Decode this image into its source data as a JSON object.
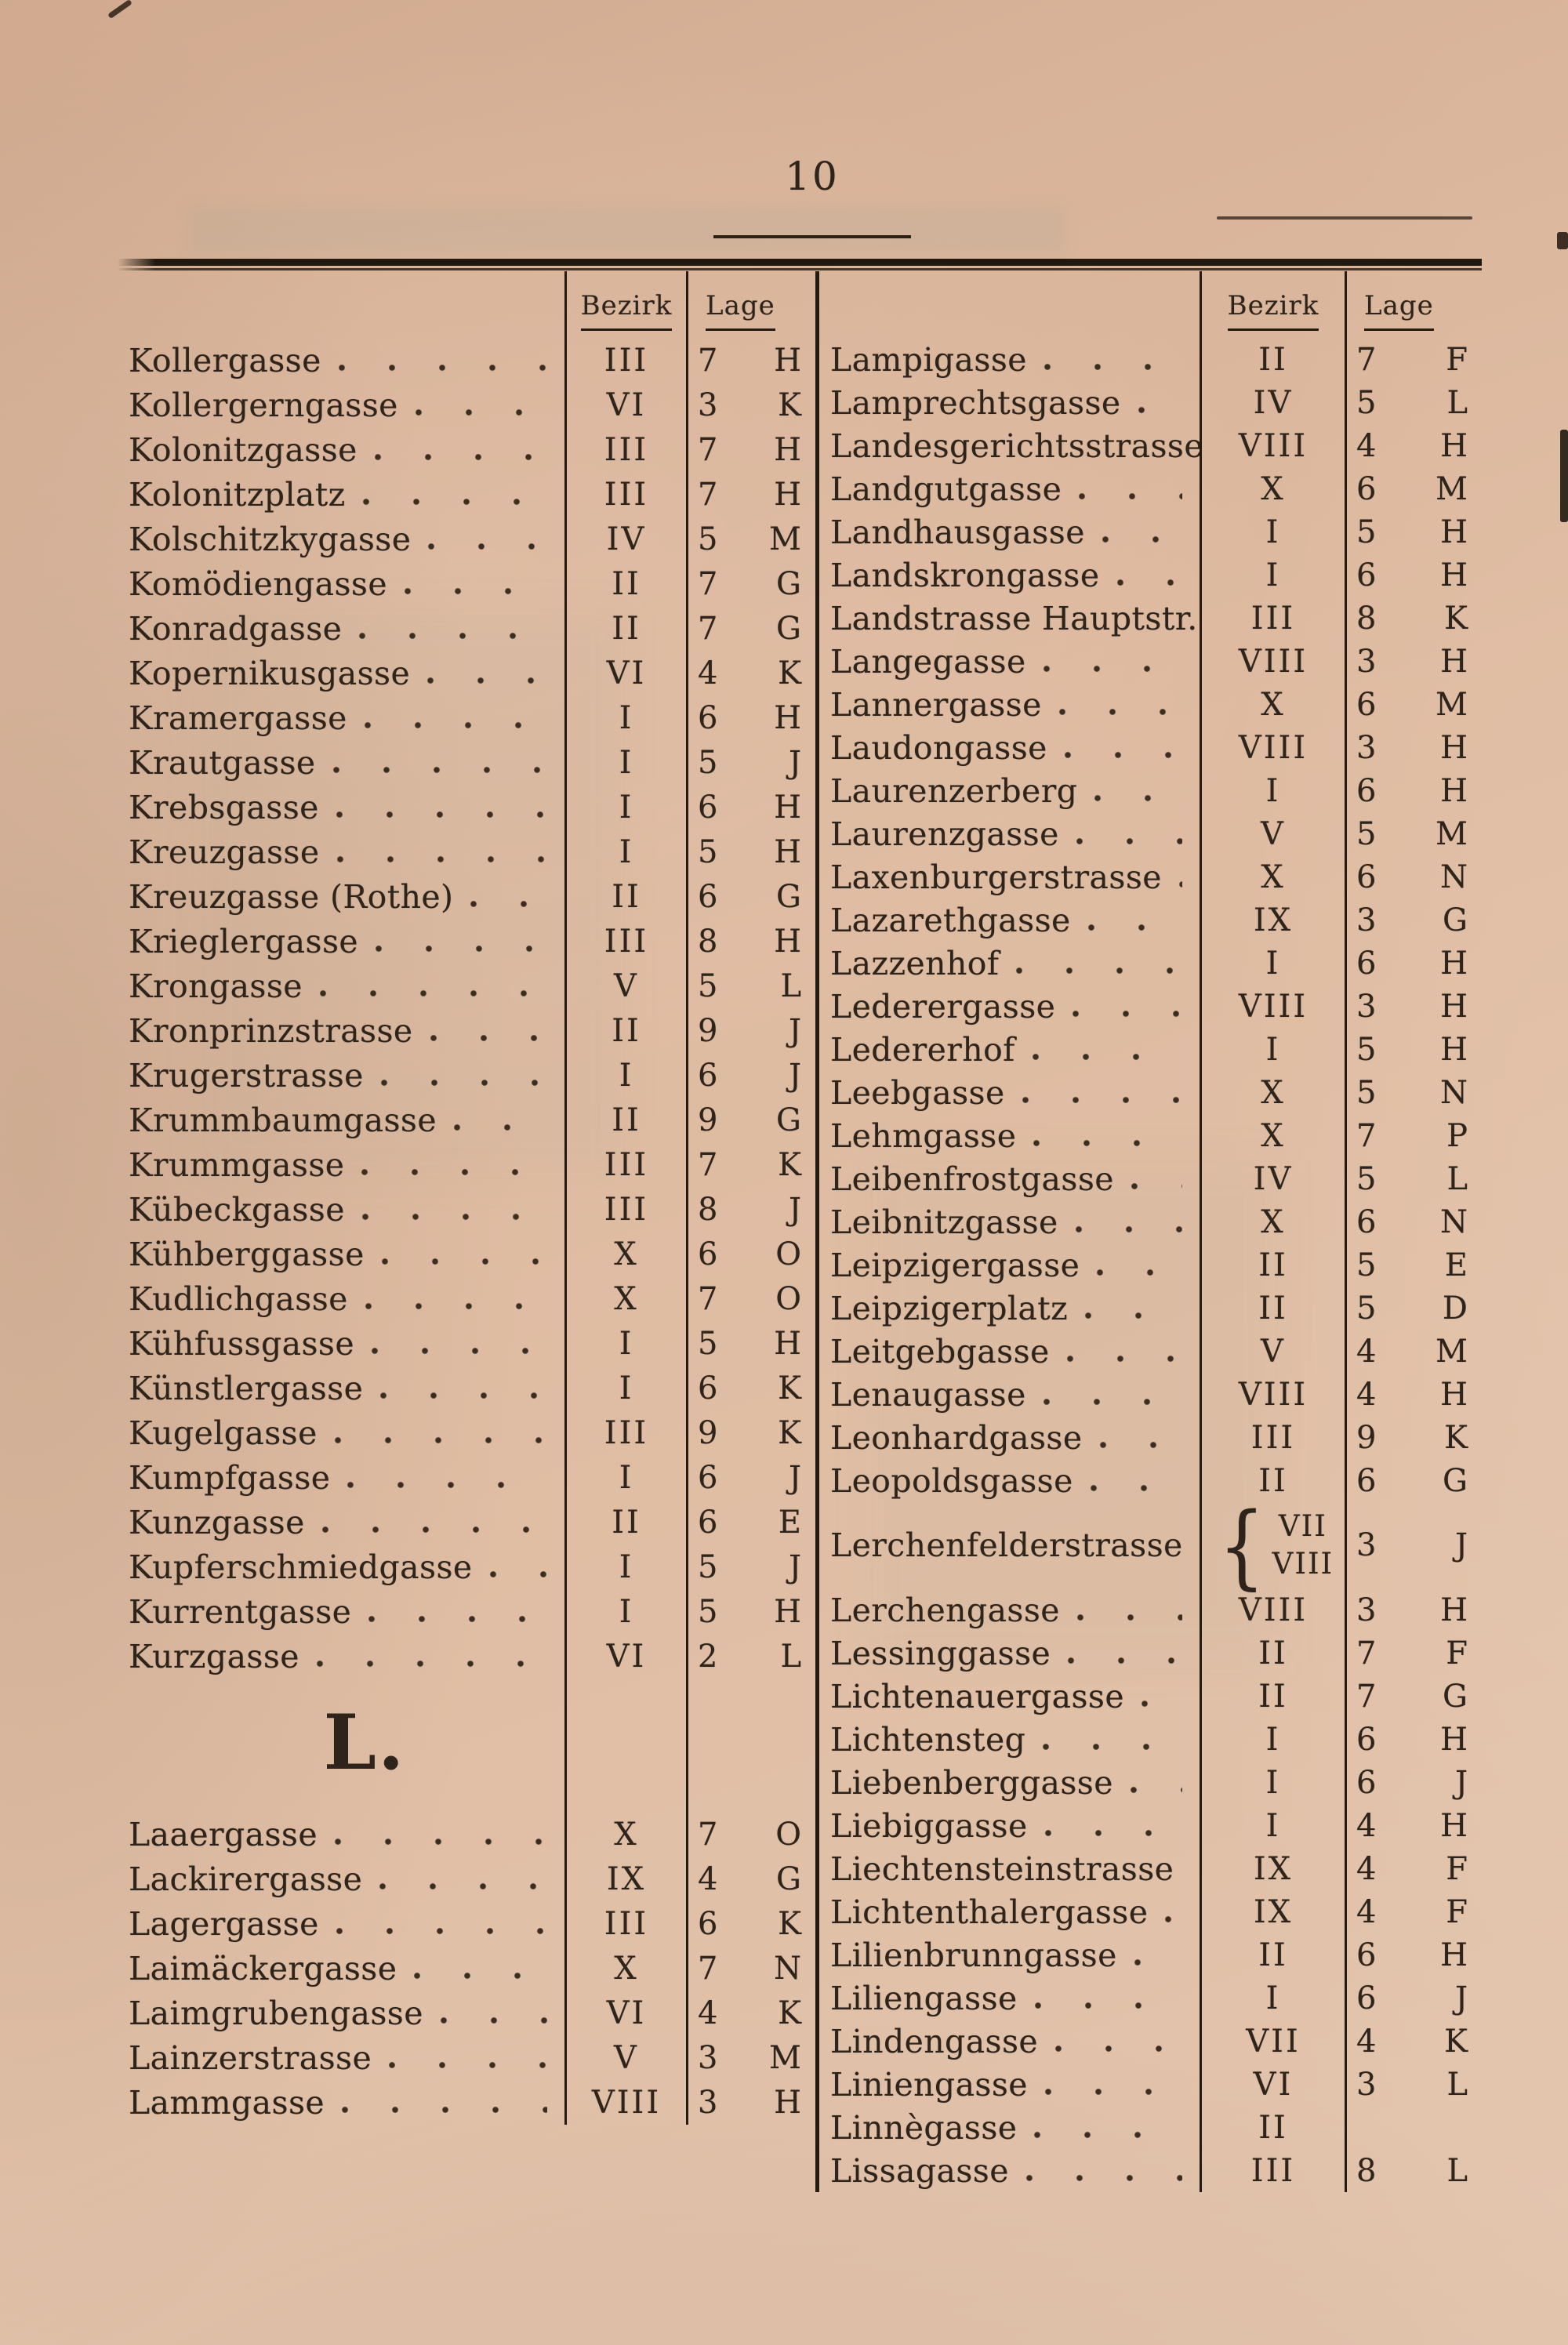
{
  "page": {
    "number": "10"
  },
  "columns": {
    "bezirk": "Bezirk",
    "lage": "Lage"
  },
  "section_header": "L.",
  "colors": {
    "paper": "#ddb99f",
    "ink": "#2e241b"
  },
  "left_table": {
    "rows": [
      {
        "name": "Kollergasse",
        "bezirk": "III",
        "lage": "7 H"
      },
      {
        "name": "Kollergerngasse",
        "bezirk": "VI",
        "lage": "3 K"
      },
      {
        "name": "Kolonitzgasse",
        "bezirk": "III",
        "lage": "7 H"
      },
      {
        "name": "Kolonitzplatz",
        "bezirk": "III",
        "lage": "7 H"
      },
      {
        "name": "Kolschitzkygasse",
        "bezirk": "IV",
        "lage": "5 M"
      },
      {
        "name": "Komödiengasse",
        "bezirk": "II",
        "lage": "7 G"
      },
      {
        "name": "Konradgasse",
        "bezirk": "II",
        "lage": "7 G"
      },
      {
        "name": "Kopernikusgasse",
        "bezirk": "VI",
        "lage": "4 K"
      },
      {
        "name": "Kramergasse",
        "bezirk": "I",
        "lage": "6 H"
      },
      {
        "name": "Krautgasse",
        "bezirk": "I",
        "lage": "5 J"
      },
      {
        "name": "Krebsgasse",
        "bezirk": "I",
        "lage": "6 H"
      },
      {
        "name": "Kreuzgasse",
        "bezirk": "I",
        "lage": "5 H"
      },
      {
        "name": "Kreuzgasse (Rothe)",
        "bezirk": "II",
        "lage": "6 G"
      },
      {
        "name": "Krieglergasse",
        "bezirk": "III",
        "lage": "8 H"
      },
      {
        "name": "Krongasse",
        "bezirk": "V",
        "lage": "5 L"
      },
      {
        "name": "Kronprinzstrasse",
        "bezirk": "II",
        "lage": "9 J"
      },
      {
        "name": "Krugerstrasse",
        "bezirk": "I",
        "lage": "6 J"
      },
      {
        "name": "Krummbaumgasse",
        "bezirk": "II",
        "lage": "9 G"
      },
      {
        "name": "Krummgasse",
        "bezirk": "III",
        "lage": "7 K"
      },
      {
        "name": "Kübeckgasse",
        "bezirk": "III",
        "lage": "8 J"
      },
      {
        "name": "Kühberggasse",
        "bezirk": "X",
        "lage": "6 O"
      },
      {
        "name": "Kudlichgasse",
        "bezirk": "X",
        "lage": "7 O"
      },
      {
        "name": "Kühfussgasse",
        "bezirk": "I",
        "lage": "5 H"
      },
      {
        "name": "Künstlergasse",
        "bezirk": "I",
        "lage": "6 K"
      },
      {
        "name": "Kugelgasse",
        "bezirk": "III",
        "lage": "9 K"
      },
      {
        "name": "Kumpfgasse",
        "bezirk": "I",
        "lage": "6 J"
      },
      {
        "name": "Kunzgasse",
        "bezirk": "II",
        "lage": "6 E"
      },
      {
        "name": "Kupferschmiedgasse",
        "bezirk": "I",
        "lage": "5 J"
      },
      {
        "name": "Kurrentgasse",
        "bezirk": "I",
        "lage": "5 H"
      },
      {
        "name": "Kurzgasse",
        "bezirk": "VI",
        "lage": "2 L"
      },
      {
        "section": "L."
      },
      {
        "name": "Laaergasse",
        "bezirk": "X",
        "lage": "7 O"
      },
      {
        "name": "Lackirergasse",
        "bezirk": "IX",
        "lage": "4 G"
      },
      {
        "name": "Lagergasse",
        "bezirk": "III",
        "lage": "6 K"
      },
      {
        "name": "Laimäckergasse",
        "bezirk": "X",
        "lage": "7 N"
      },
      {
        "name": "Laimgrubengasse",
        "bezirk": "VI",
        "lage": "4 K"
      },
      {
        "name": "Lainzerstrasse",
        "bezirk": "V",
        "lage": "3 M"
      },
      {
        "name": "Lammgasse",
        "bezirk": "VIII",
        "lage": "3 H"
      }
    ]
  },
  "right_table": {
    "rows": [
      {
        "name": "Lampigasse",
        "bezirk": "II",
        "lage": "7 F"
      },
      {
        "name": "Lamprechtsgasse",
        "bezirk": "IV",
        "lage": "5 L"
      },
      {
        "name": "Landesgerichtsstrasse",
        "bezirk": "VIII",
        "lage": "4 H"
      },
      {
        "name": "Landgutgasse",
        "bezirk": "X",
        "lage": "6 M"
      },
      {
        "name": "Landhausgasse",
        "bezirk": "I",
        "lage": "5 H"
      },
      {
        "name": "Landskrongasse",
        "bezirk": "I",
        "lage": "6 H"
      },
      {
        "name": "Landstrasse Hauptstr.",
        "bezirk": "III",
        "lage": "8 K"
      },
      {
        "name": "Langegasse",
        "bezirk": "VIII",
        "lage": "3 H"
      },
      {
        "name": "Lannergasse",
        "bezirk": "X",
        "lage": "6 M"
      },
      {
        "name": "Laudongasse",
        "bezirk": "VIII",
        "lage": "3 H"
      },
      {
        "name": "Laurenzerberg",
        "bezirk": "I",
        "lage": "6 H"
      },
      {
        "name": "Laurenzgasse",
        "bezirk": "V",
        "lage": "5 M"
      },
      {
        "name": "Laxenburgerstrasse",
        "bezirk": "X",
        "lage": "6 N"
      },
      {
        "name": "Lazarethgasse",
        "bezirk": "IX",
        "lage": "3 G"
      },
      {
        "name": "Lazzenhof",
        "bezirk": "I",
        "lage": "6 H"
      },
      {
        "name": "Lederergasse",
        "bezirk": "VIII",
        "lage": "3 H"
      },
      {
        "name": "Ledererhof",
        "bezirk": "I",
        "lage": "5 H"
      },
      {
        "name": "Leebgasse",
        "bezirk": "X",
        "lage": "5 N"
      },
      {
        "name": "Lehmgasse",
        "bezirk": "X",
        "lage": "7 P"
      },
      {
        "name": "Leibenfrostgasse",
        "bezirk": "IV",
        "lage": "5 L"
      },
      {
        "name": "Leibnitzgasse",
        "bezirk": "X",
        "lage": "6 N"
      },
      {
        "name": "Leipzigergasse",
        "bezirk": "II",
        "lage": "5 E"
      },
      {
        "name": "Leipzigerplatz",
        "bezirk": "II",
        "lage": "5 D"
      },
      {
        "name": "Leitgebgasse",
        "bezirk": "V",
        "lage": "4 M"
      },
      {
        "name": "Lenaugasse",
        "bezirk": "VIII",
        "lage": "4 H"
      },
      {
        "name": "Leonhardgasse",
        "bezirk": "III",
        "lage": "9 K"
      },
      {
        "name": "Leopoldsgasse",
        "bezirk": "II",
        "lage": "6 G"
      },
      {
        "name": "Lerchenfelderstrasse",
        "bezirk": [
          "VII",
          "VIII"
        ],
        "lage": "3 J"
      },
      {
        "name": "Lerchengasse",
        "bezirk": "VIII",
        "lage": "3 H"
      },
      {
        "name": "Lessinggasse",
        "bezirk": "II",
        "lage": "7 F"
      },
      {
        "name": "Lichtenauergasse",
        "bezirk": "II",
        "lage": "7 G"
      },
      {
        "name": "Lichtensteg",
        "bezirk": "I",
        "lage": "6 H"
      },
      {
        "name": "Liebenberggasse",
        "bezirk": "I",
        "lage": "6 J"
      },
      {
        "name": "Liebiggasse",
        "bezirk": "I",
        "lage": "4 H"
      },
      {
        "name": "Liechtensteinstrasse",
        "bezirk": "IX",
        "lage": "4 F"
      },
      {
        "name": "Lichtenthalergasse",
        "bezirk": "IX",
        "lage": "4 F"
      },
      {
        "name": "Lilienbrunngasse",
        "bezirk": "II",
        "lage": "6 H"
      },
      {
        "name": "Liliengasse",
        "bezirk": "I",
        "lage": "6 J"
      },
      {
        "name": "Lindengasse",
        "bezirk": "VII",
        "lage": "4 K"
      },
      {
        "name": "Liniengasse",
        "bezirk": "VI",
        "lage": "3 L"
      },
      {
        "name": "Linnègasse",
        "bezirk": "II",
        "lage": ""
      },
      {
        "name": "Lissagasse",
        "bezirk": "III",
        "lage": "8 L"
      }
    ]
  }
}
